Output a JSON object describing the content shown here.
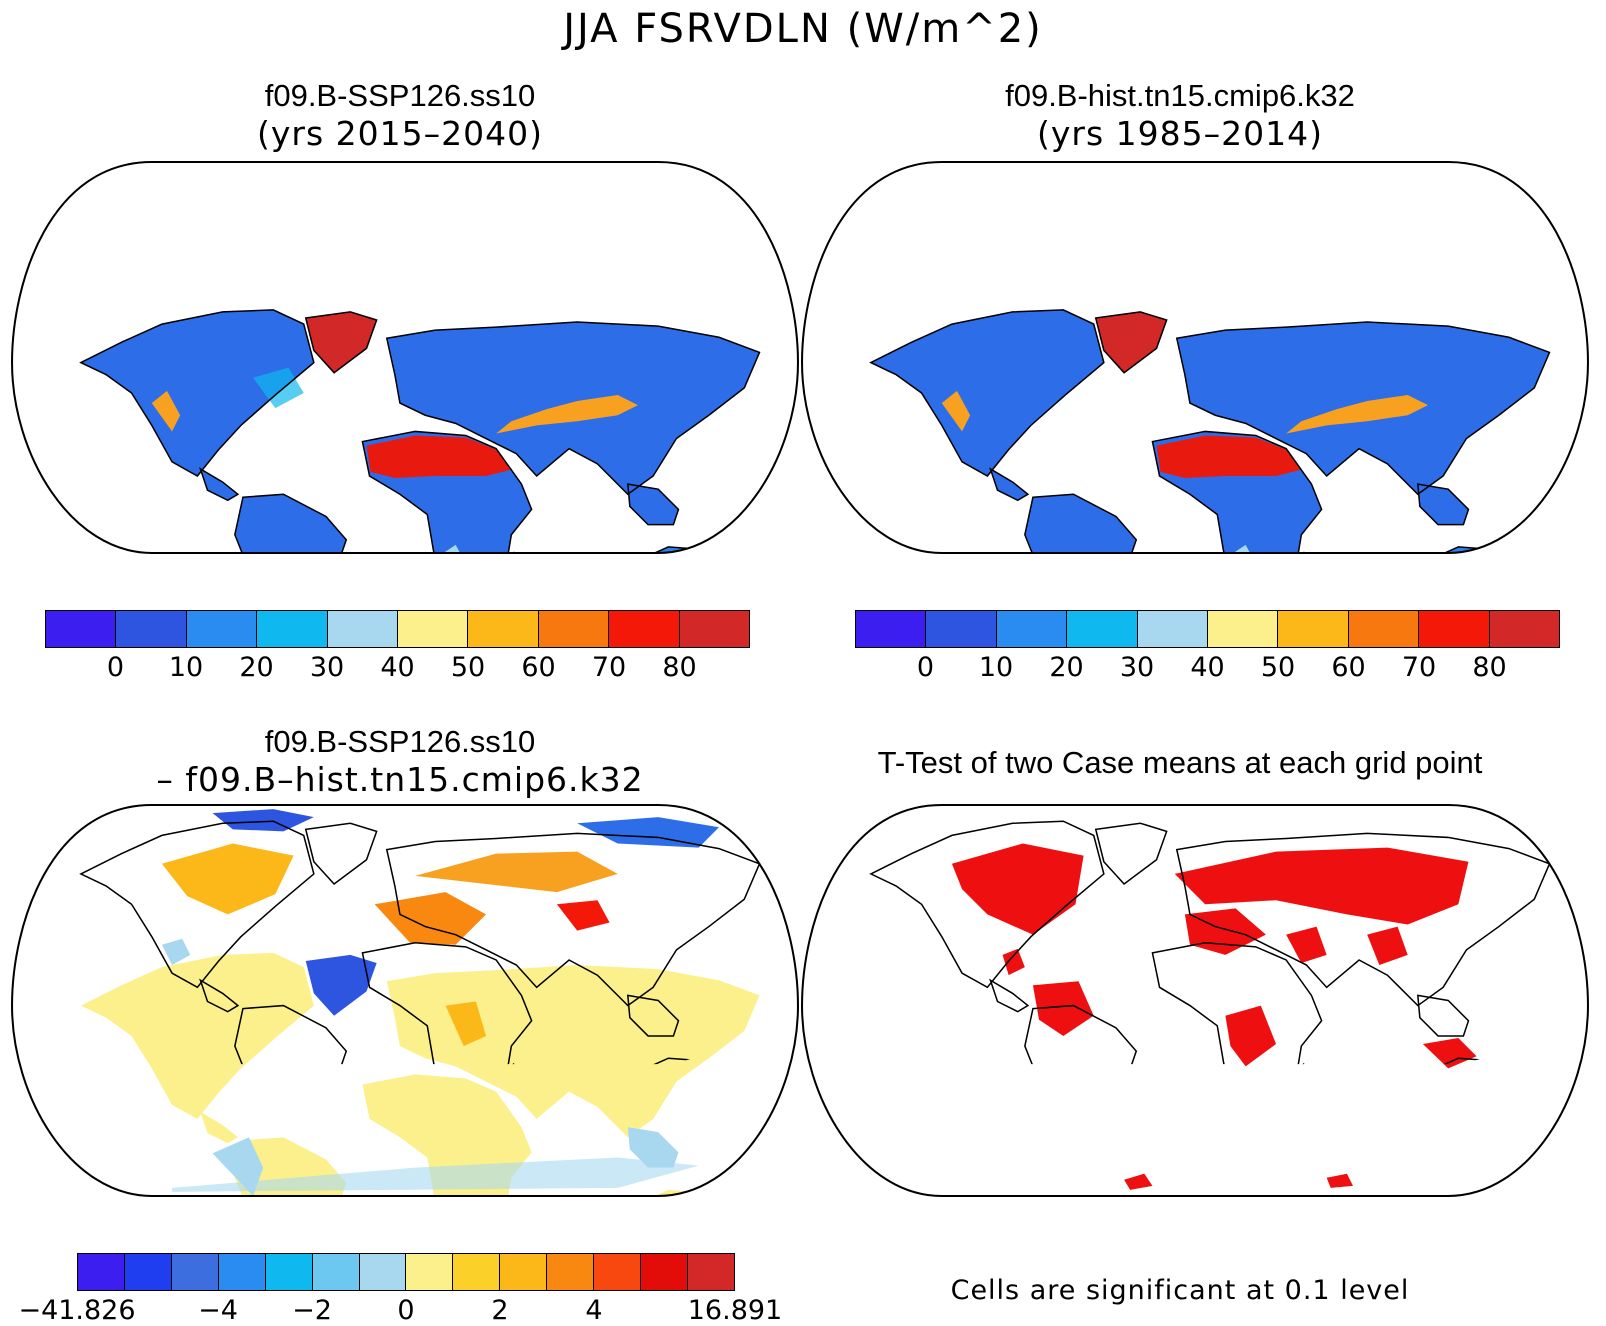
{
  "main_title": "JJA FSRVDLN (W/m^2)",
  "panels": {
    "top_left": {
      "title": "f09.B-SSP126.ss10",
      "subtitle": "(yrs 2015–2040)"
    },
    "top_right": {
      "title": "f09.B-hist.tn15.cmip6.k32",
      "subtitle": "(yrs 1985–2014)"
    },
    "bottom_left": {
      "title": "f09.B-SSP126.ss10",
      "subtitle": "– f09.B–hist.tn15.cmip6.k32"
    },
    "bottom_right": {
      "title": "T-Test of two Case means at each grid point",
      "note": "Cells are significant at 0.1 level"
    }
  },
  "colorbars": {
    "absolute": {
      "colors": [
        "#3c1ef0",
        "#2d55e0",
        "#2a8cf0",
        "#10b8f0",
        "#a8d8f0",
        "#fbf08c",
        "#fbb818",
        "#f87810",
        "#f41808",
        "#d22828"
      ],
      "labels": [
        "0",
        "10",
        "20",
        "30",
        "40",
        "50",
        "60",
        "70",
        "80"
      ]
    },
    "difference": {
      "colors": [
        "#3c1ef0",
        "#1e3ef0",
        "#3c6ee0",
        "#2a8cf0",
        "#10b8f0",
        "#6cc8f0",
        "#a8d8f0",
        "#fbf08c",
        "#fbd028",
        "#fbb818",
        "#f88810",
        "#f84810",
        "#e20c08",
        "#d22828"
      ],
      "labels": [
        "−41.826",
        "−4",
        "−2",
        "0",
        "2",
        "4",
        "16.891"
      ]
    },
    "significance_color": "#ee1010"
  }
}
